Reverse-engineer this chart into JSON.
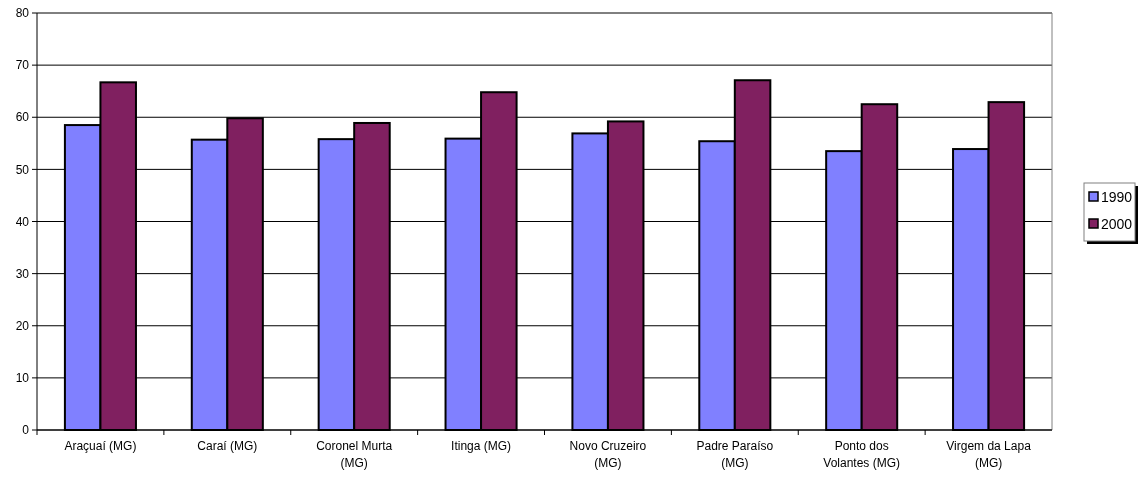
{
  "chart_data": {
    "type": "bar",
    "categories": [
      "Araçuaí (MG)",
      "Caraí (MG)",
      "Coronel Murta (MG)",
      "Itinga (MG)",
      "Novo Cruzeiro (MG)",
      "Padre Paraíso (MG)",
      "Ponto dos Volantes (MG)",
      "Virgem da Lapa (MG)"
    ],
    "series": [
      {
        "name": "1990",
        "color": "#8080ff",
        "values": [
          58.5,
          55.7,
          55.8,
          55.9,
          56.9,
          55.4,
          53.5,
          53.9
        ]
      },
      {
        "name": "2000",
        "color": "#802060",
        "values": [
          66.7,
          59.8,
          58.9,
          64.8,
          59.2,
          67.1,
          62.5,
          62.9
        ]
      }
    ],
    "ylim": [
      0,
      80
    ],
    "yticks": [
      0,
      10,
      20,
      30,
      40,
      50,
      60,
      70,
      80
    ],
    "grid": "y",
    "legend": "right"
  }
}
